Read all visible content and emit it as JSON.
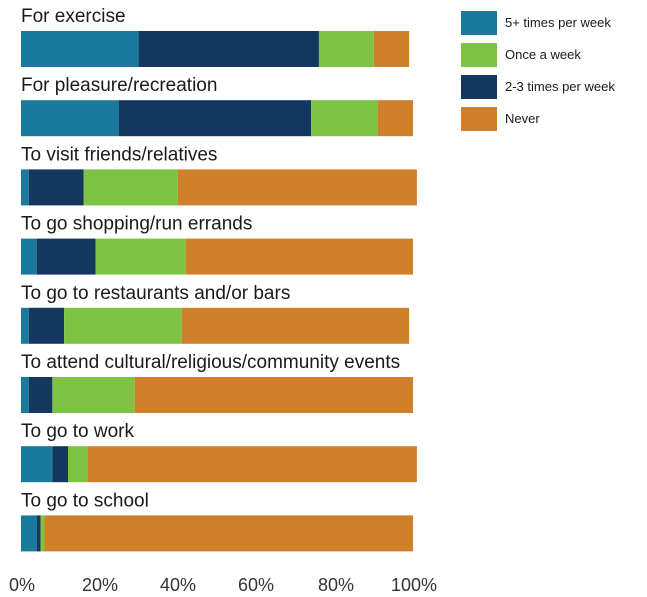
{
  "chart_data": {
    "type": "bar",
    "orientation": "horizontal",
    "stacked": true,
    "title": "",
    "xlabel": "",
    "ylabel": "",
    "xlim": [
      0,
      100
    ],
    "x_ticks": [
      "0%",
      "20%",
      "40%",
      "60%",
      "80%",
      "100%"
    ],
    "grid": false,
    "legend_position": "top-right",
    "categories": [
      "For exercise",
      "For pleasure/recreation",
      "To visit friends/relatives",
      "To go shopping/run errands",
      "To go to restaurants and/or bars",
      "To attend cultural/religious/community events",
      "To go to work",
      "To go to school"
    ],
    "series": [
      {
        "name": "5+ times per week",
        "color": "#1b7a9c",
        "values": [
          30,
          25,
          2,
          4,
          2,
          2,
          8,
          4
        ]
      },
      {
        "name": "2-3 times per week",
        "color": "#15365f",
        "values": [
          46,
          49,
          14,
          15,
          9,
          6,
          4,
          1
        ]
      },
      {
        "name": "Once a week",
        "color": "#7dc242",
        "values": [
          14,
          17,
          24,
          23,
          30,
          21,
          5,
          1
        ]
      },
      {
        "name": "Never",
        "color": "#d07f2b",
        "values": [
          9,
          9,
          61,
          58,
          58,
          71,
          84,
          94
        ]
      }
    ],
    "legend_order": [
      "5+ times per week",
      "Once a week",
      "2-3 times per week",
      "Never"
    ]
  }
}
